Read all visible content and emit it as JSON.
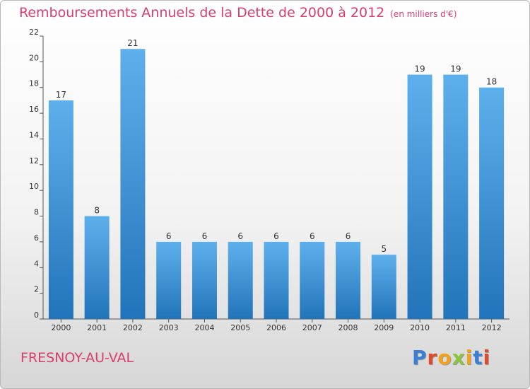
{
  "title": "Remboursements Annuels de la Dette de 2000 à 2012",
  "unit_note": "(en milliers d'€)",
  "commune": "FRESNOY-AU-VAL",
  "logo": {
    "text": "Proxiti",
    "letter_colors": [
      "#3a7fd6",
      "#e04a2a",
      "#f3a21d",
      "#8bc53f",
      "#f3a21d",
      "#3a7fd6",
      "#e04a2a"
    ]
  },
  "colors": {
    "bar_light": "#5eb0ec",
    "bar_dark": "#2274ba",
    "title": "#d83e6e"
  },
  "chart_data": {
    "type": "bar",
    "categories": [
      "2000",
      "2001",
      "2002",
      "2003",
      "2004",
      "2005",
      "2006",
      "2007",
      "2008",
      "2009",
      "2010",
      "2011",
      "2012"
    ],
    "values": [
      17,
      8,
      21,
      6,
      6,
      6,
      6,
      6,
      6,
      5,
      19,
      19,
      18
    ],
    "data_labels": [
      "17",
      "8",
      "21",
      "6",
      "6",
      "6",
      "6",
      "6",
      "6",
      "5",
      "19",
      "19",
      "18"
    ],
    "yticks": [
      "0",
      "2",
      "4",
      "6",
      "8",
      "10",
      "12",
      "14",
      "16",
      "18",
      "20",
      "22"
    ],
    "ylim": [
      0,
      22
    ],
    "grid": false
  }
}
